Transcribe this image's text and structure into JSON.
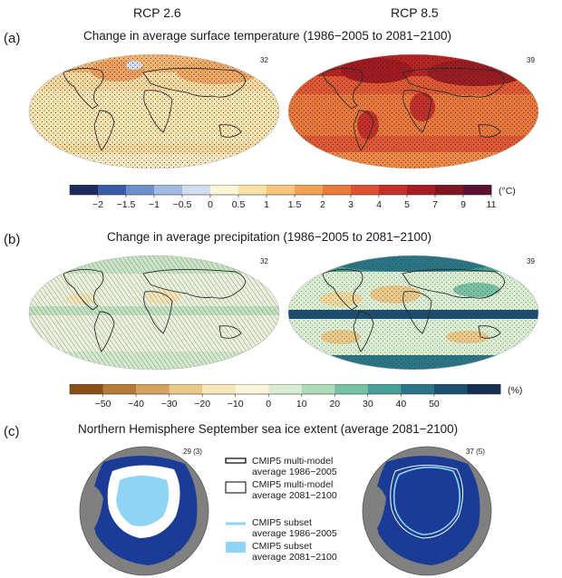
{
  "scenarios": [
    "RCP 2.6",
    "RCP 8.5"
  ],
  "panels": {
    "a": {
      "letter": "(a)",
      "title": "Change in average surface temperature (1986−2005 to 2081−2100)",
      "models_left": "32",
      "models_right": "39"
    },
    "b": {
      "letter": "(b)",
      "title": "Change in average precipitation (1986−2005 to 2081−2100)",
      "models_left": "32",
      "models_right": "39"
    },
    "c": {
      "letter": "(c)",
      "title": "Northern Hemisphere September sea ice extent (average 2081−2100)",
      "models_left": "29 (3)",
      "models_right": "37 (5)"
    }
  },
  "legend_c": [
    {
      "key": "multi_1986",
      "line1": "CMIP5 multi-model",
      "line2": "average 1986−2005"
    },
    {
      "key": "multi_2081",
      "line1": "CMIP5 multi-model",
      "line2": "average 2081−2100"
    },
    {
      "key": "subset_1986",
      "line1": "CMIP5 subset",
      "line2": "average 1986−2005"
    },
    {
      "key": "subset_2081",
      "line1": "CMIP5 subset",
      "line2": "average 2081−2100"
    }
  ],
  "colors": {
    "temp_scale": [
      "#1d2b5e",
      "#3a5ba8",
      "#6e8fc9",
      "#a3b9e0",
      "#d2ddf0",
      "#fdf5d6",
      "#fbe2a6",
      "#f7c67a",
      "#f1a253",
      "#e87a3c",
      "#dd5232",
      "#c73029",
      "#a81c23",
      "#7f1520",
      "#5c1133"
    ],
    "precip_scale": [
      "#8a4f1a",
      "#b57a38",
      "#d4a35f",
      "#e8c98a",
      "#f6e6b8",
      "#fbf6dc",
      "#d9eed2",
      "#aedbb8",
      "#79c1a4",
      "#489f95",
      "#2c7587",
      "#1d4f73",
      "#152f52"
    ],
    "ice_ocean": "#1a3c96",
    "ice_land": "#808080",
    "ice_subset": "#8fd4f4",
    "ice_outline": "#ffffff"
  },
  "chart_data": [
    {
      "id": "a",
      "type": "heatmap",
      "title": "Change in average surface temperature (1986−2005 to 2081−2100)",
      "scenarios": [
        "RCP 2.6",
        "RCP 8.5"
      ],
      "model_counts": [
        32,
        39
      ],
      "colorbar": {
        "ticks": [
          -2,
          -1.5,
          -1,
          -0.5,
          0,
          0.5,
          1,
          1.5,
          2,
          3,
          4,
          5,
          7,
          9,
          11
        ],
        "unit": "(°C)"
      }
    },
    {
      "id": "b",
      "type": "heatmap",
      "title": "Change in average precipitation (1986−2005 to 2081−2100)",
      "scenarios": [
        "RCP 2.6",
        "RCP 8.5"
      ],
      "model_counts": [
        32,
        39
      ],
      "colorbar": {
        "ticks": [
          -50,
          -40,
          -30,
          -20,
          -10,
          0,
          10,
          20,
          30,
          40,
          50
        ],
        "unit": "(%)"
      }
    },
    {
      "id": "c",
      "type": "other",
      "title": "Northern Hemisphere September sea ice extent (average 2081−2100)",
      "scenarios": [
        "RCP 2.6",
        "RCP 8.5"
      ],
      "model_counts": [
        "29 (3)",
        "37 (5)"
      ],
      "legend": [
        "CMIP5 multi-model average 1986−2005",
        "CMIP5 multi-model average 2081−2100",
        "CMIP5 subset average 1986−2005",
        "CMIP5 subset average 2081−2100"
      ]
    }
  ]
}
